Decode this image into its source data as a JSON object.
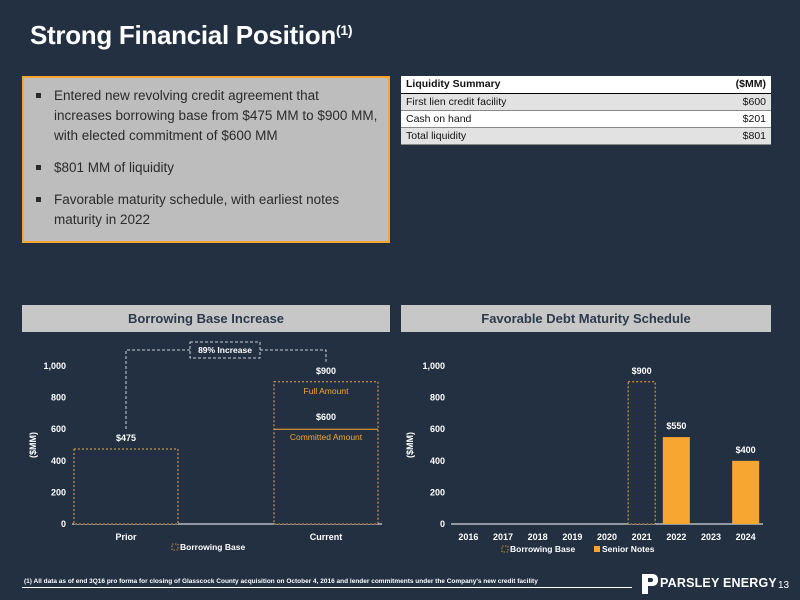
{
  "title": "Strong Financial Position",
  "title_sup": "(1)",
  "bullets": [
    "Entered new revolving credit agreement that increases borrowing base from $475 MM to $900 MM, with elected commitment of $600 MM",
    "$801 MM of liquidity",
    "Favorable maturity schedule, with earliest notes maturity in 2022"
  ],
  "liquidity": {
    "header_label": "Liquidity Summary",
    "header_unit": "($MM)",
    "rows": [
      {
        "label": "First lien credit facility",
        "value": "$600"
      },
      {
        "label": "Cash on hand",
        "value": "$201"
      },
      {
        "label": "Total liquidity",
        "value": "$801"
      }
    ]
  },
  "left_section_title": "Borrowing Base Increase",
  "right_section_title": "Favorable Debt Maturity Schedule",
  "footnote": "(1) All data as of end 3Q16 pro forma for closing of Glasscock County acquisition on October 4, 2016 and lender commitments under the Company's new credit facility",
  "logo_text": "PARSLEY ENERGY",
  "page_number": "13",
  "colors": {
    "background": "#223042",
    "accent": "#f7a632",
    "panel": "#bdbdbd"
  },
  "chart_data": [
    {
      "type": "bar",
      "categories": [
        "Prior",
        "Current"
      ],
      "series": [
        {
          "name": "Borrowing Base",
          "values": [
            475,
            900
          ]
        }
      ],
      "committed_value": 600,
      "data_labels": [
        "$475",
        "$900"
      ],
      "committed_label": "$600",
      "annotations": {
        "increase": "89% Increase",
        "full": "Full Amount",
        "committed": "Committed Amount"
      },
      "ylabel": "($MM)",
      "ylim": [
        0,
        1000
      ],
      "yticks": [
        0,
        200,
        400,
        600,
        800,
        1000
      ],
      "ytick_labels": [
        "0",
        "200",
        "400",
        "600",
        "800",
        "1,000"
      ],
      "legend": "bottom"
    },
    {
      "type": "bar",
      "categories": [
        "2016",
        "2017",
        "2018",
        "2019",
        "2020",
        "2021",
        "2022",
        "2023",
        "2024"
      ],
      "series": [
        {
          "name": "Borrowing Base",
          "values": [
            0,
            0,
            0,
            0,
            0,
            900,
            0,
            0,
            0
          ]
        },
        {
          "name": "Senior Notes",
          "values": [
            0,
            0,
            0,
            0,
            0,
            0,
            550,
            0,
            400
          ]
        }
      ],
      "data_labels": [
        {
          "category": "2021",
          "text": "$900"
        },
        {
          "category": "2022",
          "text": "$550"
        },
        {
          "category": "2024",
          "text": "$400"
        }
      ],
      "ylabel": "($MM)",
      "ylim": [
        0,
        1000
      ],
      "yticks": [
        0,
        200,
        400,
        600,
        800,
        1000
      ],
      "ytick_labels": [
        "0",
        "200",
        "400",
        "600",
        "800",
        "1,000"
      ],
      "legend": "bottom"
    }
  ]
}
